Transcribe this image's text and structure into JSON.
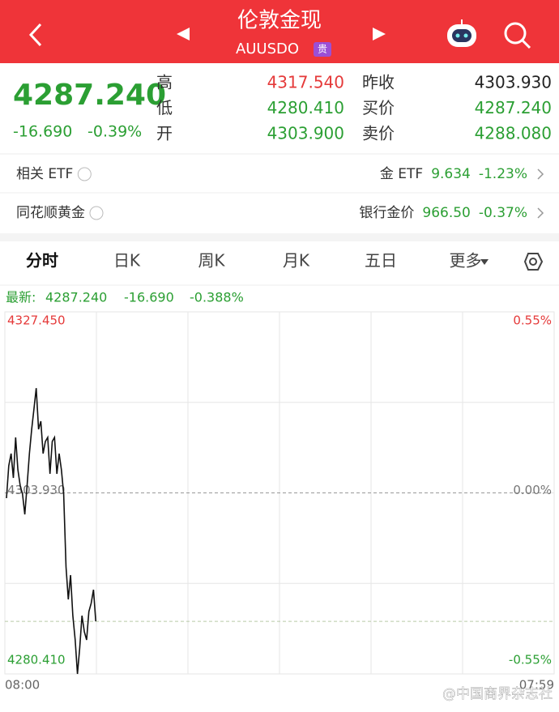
{
  "header": {
    "title": "伦敦金现",
    "subtitle": "AUUSDO",
    "badge": "贵"
  },
  "quote": {
    "price": "4287.240",
    "change": "-16.690",
    "change_pct": "-0.39%",
    "left": [
      {
        "label": "高",
        "value": "4317.540"
      },
      {
        "label": "低",
        "value": "4280.410"
      },
      {
        "label": "开",
        "value": "4303.900"
      }
    ],
    "right": [
      {
        "label": "昨收",
        "value": "4303.930"
      },
      {
        "label": "买价",
        "value": "4287.240"
      },
      {
        "label": "卖价",
        "value": "4288.080"
      }
    ]
  },
  "related": [
    {
      "label": "相关 ETF",
      "name": "金 ETF",
      "value": "9.634",
      "change": "-1.23%"
    },
    {
      "label": "同花顺黄金",
      "name": "银行金价",
      "value": "966.50",
      "change": "-0.37%"
    }
  ],
  "tabs": [
    "分时",
    "日K",
    "周K",
    "月K",
    "五日",
    "更多"
  ],
  "latest": {
    "label": "最新:",
    "price": "4287.240",
    "change": "-16.690",
    "change_pct": "-0.388%"
  },
  "chart_data": {
    "type": "line",
    "color": "#111111",
    "values": [
      4303.25,
      4307.45,
      4309.03,
      4305.88,
      4311.14,
      4306.93,
      4304.82,
      4303.77,
      4301.14,
      4304.82,
      4309.03,
      4312.19,
      4314.82,
      4317.54,
      4312.19,
      4313.24,
      4309.03,
      4310.61,
      4311.14,
      4306.4,
      4310.61,
      4311.14,
      4306.4,
      4309.03,
      4306.93,
      4303.77,
      4294.3,
      4290.09,
      4293.25,
      4287.99,
      4284.83,
      4280.41,
      4283.78,
      4287.99,
      4285.88,
      4284.83,
      4288.51,
      4289.57,
      4291.35,
      4287.24
    ],
    "ylim": [
      4280.41,
      4327.45
    ],
    "yticks": [
      {
        "value": 4280.41,
        "label": "4280.410"
      },
      {
        "value": 4303.93,
        "label": "4303.930"
      },
      {
        "value": 4327.45,
        "label": "4327.450"
      }
    ],
    "y2lim": [
      -0.55,
      0.55
    ],
    "y2ticks": [
      {
        "value": -0.55,
        "label": "-0.55%"
      },
      {
        "value": 0,
        "label": "0.00%"
      },
      {
        "value": 0.55,
        "label": "0.55%"
      }
    ],
    "x_labels": [
      "08:00",
      "07:59"
    ]
  },
  "watermark": "@中国商界杂志社"
}
